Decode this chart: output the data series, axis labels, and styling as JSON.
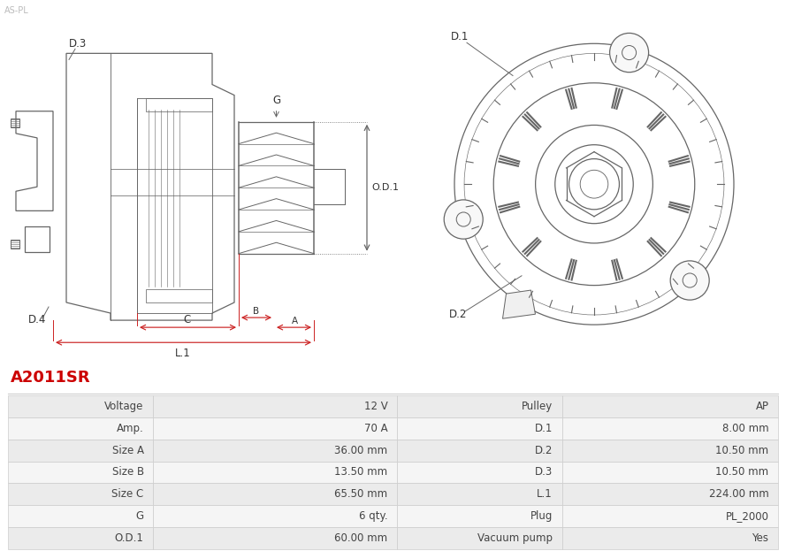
{
  "title": "A2011SR",
  "title_color": "#cc0000",
  "table_data": [
    [
      "Voltage",
      "12 V",
      "Pulley",
      "AP"
    ],
    [
      "Amp.",
      "70 A",
      "D.1",
      "8.00 mm"
    ],
    [
      "Size A",
      "36.00 mm",
      "D.2",
      "10.50 mm"
    ],
    [
      "Size B",
      "13.50 mm",
      "D.3",
      "10.50 mm"
    ],
    [
      "Size C",
      "65.50 mm",
      "L.1",
      "224.00 mm"
    ],
    [
      "G",
      "6 qty.",
      "Plug",
      "PL_2000"
    ],
    [
      "O.D.1",
      "60.00 mm",
      "Vacuum pump",
      "Yes"
    ]
  ],
  "row_bg_even": "#ebebeb",
  "row_bg_odd": "#f5f5f5",
  "text_color": "#444444",
  "bg_color": "#ffffff"
}
